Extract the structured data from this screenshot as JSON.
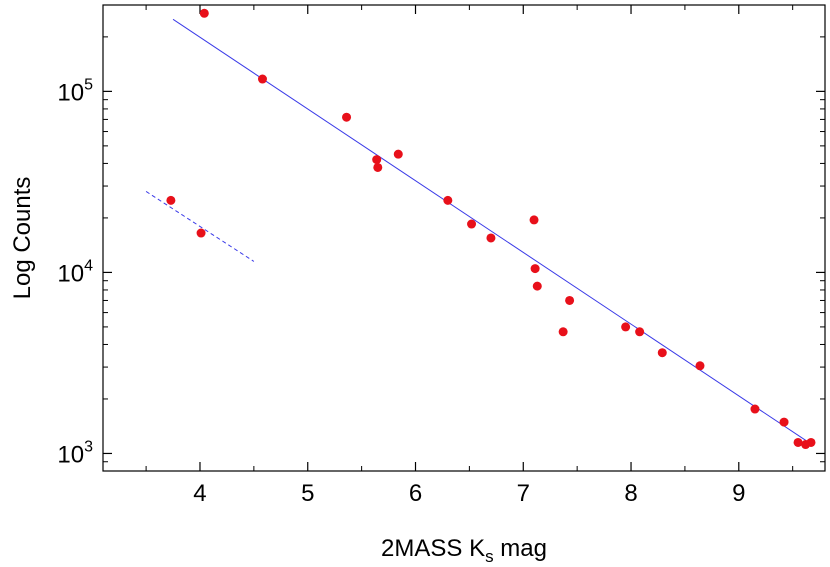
{
  "chart_data": {
    "type": "scatter",
    "title": "",
    "xlabel_main": "2MASS K",
    "xlabel_sub": "s",
    "xlabel_tail": " mag",
    "ylabel": "Log Counts",
    "xlim": [
      3.1,
      9.8
    ],
    "ylim": [
      800,
      300000
    ],
    "yscale": "log",
    "grid": false,
    "x_ticks": [
      {
        "value": 4,
        "label": "4"
      },
      {
        "value": 5,
        "label": "5"
      },
      {
        "value": 6,
        "label": "6"
      },
      {
        "value": 7,
        "label": "7"
      },
      {
        "value": 8,
        "label": "8"
      },
      {
        "value": 9,
        "label": "9"
      }
    ],
    "y_ticks": [
      {
        "value": 1000,
        "base": "10",
        "exp": "3"
      },
      {
        "value": 10000,
        "base": "10",
        "exp": "4"
      },
      {
        "value": 100000,
        "base": "10",
        "exp": "5"
      }
    ],
    "points_color": "#e8101a",
    "line_color": "#3a3ae8",
    "points": [
      {
        "x": 3.73,
        "y": 25000
      },
      {
        "x": 4.01,
        "y": 16500
      },
      {
        "x": 4.04,
        "y": 270000
      },
      {
        "x": 4.58,
        "y": 117000
      },
      {
        "x": 5.36,
        "y": 72000
      },
      {
        "x": 5.64,
        "y": 42000
      },
      {
        "x": 5.65,
        "y": 38000
      },
      {
        "x": 5.84,
        "y": 45000
      },
      {
        "x": 6.3,
        "y": 25000
      },
      {
        "x": 6.52,
        "y": 18500
      },
      {
        "x": 6.7,
        "y": 15500
      },
      {
        "x": 7.1,
        "y": 19500
      },
      {
        "x": 7.11,
        "y": 10500
      },
      {
        "x": 7.13,
        "y": 8400
      },
      {
        "x": 7.37,
        "y": 4700
      },
      {
        "x": 7.43,
        "y": 7000
      },
      {
        "x": 7.95,
        "y": 5000
      },
      {
        "x": 8.08,
        "y": 4700
      },
      {
        "x": 8.29,
        "y": 3600
      },
      {
        "x": 8.64,
        "y": 3050
      },
      {
        "x": 9.15,
        "y": 1760
      },
      {
        "x": 9.42,
        "y": 1490
      },
      {
        "x": 9.55,
        "y": 1150
      },
      {
        "x": 9.62,
        "y": 1120
      },
      {
        "x": 9.67,
        "y": 1150
      }
    ],
    "fit_line": {
      "x": [
        3.75,
        9.65
      ],
      "y": [
        250000,
        1150
      ]
    },
    "dashed_line": {
      "x": [
        3.5,
        4.5
      ],
      "y": [
        28000,
        11500
      ]
    }
  }
}
